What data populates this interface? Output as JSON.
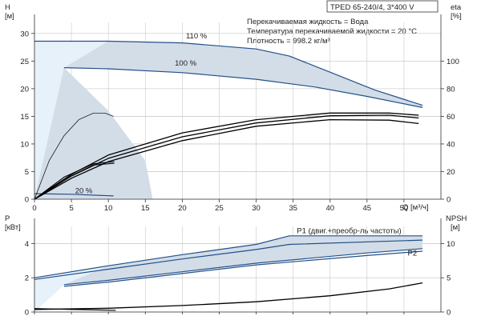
{
  "header": {
    "model": "TPED 65-240/4, 3*400 V"
  },
  "annotations": {
    "liquid": "Перекачиваемая жидкость = Вода",
    "temperature": "Температура перекачиваемой жидкости = 20 °C",
    "density": "Плотность = 998.2 кг/м³"
  },
  "colors": {
    "envelope": "#d3dde8",
    "envelope_light": "#e6f1fa",
    "speed_curve": "#23508a",
    "system_curve": "#000000"
  },
  "chart_data": [
    {
      "type": "line",
      "panel": "head-efficiency",
      "x_label": "Q [м³/ч]",
      "y_label": "H",
      "y_unit": "[м]",
      "y2_label": "eta",
      "y2_unit": "[%]",
      "x_ticks": [
        "0",
        "5",
        "10",
        "15",
        "20",
        "25",
        "30",
        "35",
        "40",
        "45",
        "50"
      ],
      "y_ticks": [
        "0",
        "5",
        "10",
        "15",
        "20",
        "25",
        "30"
      ],
      "y2_ticks": [
        "0",
        "20",
        "40",
        "60",
        "80",
        "100"
      ],
      "xlim": [
        0,
        55
      ],
      "ylim": [
        0,
        32
      ],
      "y2lim": [
        0,
        128
      ],
      "envelope": [
        [
          0,
          28.6
        ],
        [
          10,
          28.6
        ],
        [
          20,
          28.3
        ],
        [
          30,
          27.2
        ],
        [
          34.5,
          25.9
        ],
        [
          40,
          23
        ],
        [
          46,
          19.8
        ],
        [
          52.5,
          17
        ],
        [
          52.5,
          16.6
        ],
        [
          45,
          18.6
        ],
        [
          38,
          20.3
        ],
        [
          30,
          21.7
        ],
        [
          20,
          22.9
        ],
        [
          10,
          23.6
        ],
        [
          4,
          23.8
        ],
        [
          10,
          16
        ],
        [
          15,
          7
        ],
        [
          16,
          0
        ],
        [
          0,
          0
        ]
      ],
      "envelope_light": [
        [
          0,
          28.6
        ],
        [
          10,
          28.6
        ],
        [
          4,
          23.8
        ],
        [
          0,
          0
        ]
      ],
      "series": [
        {
          "name": "110 %",
          "role": "speed",
          "points": [
            [
              0,
              28.6
            ],
            [
              10,
              28.6
            ],
            [
              20,
              28.3
            ],
            [
              30,
              27.2
            ],
            [
              34.5,
              25.9
            ],
            [
              40,
              23
            ],
            [
              46,
              19.8
            ],
            [
              52.5,
              17
            ]
          ]
        },
        {
          "name": "100 %",
          "role": "speed",
          "points": [
            [
              4,
              23.8
            ],
            [
              10,
              23.6
            ],
            [
              20,
              22.9
            ],
            [
              30,
              21.7
            ],
            [
              38,
              20.3
            ],
            [
              45,
              18.6
            ],
            [
              52.5,
              16.6
            ]
          ]
        },
        {
          "name": "20 %",
          "role": "speed",
          "points": [
            [
              0,
              1
            ],
            [
              5,
              0.9
            ],
            [
              10.7,
              0.6
            ]
          ]
        },
        {
          "role": "system",
          "points": [
            [
              0,
              0
            ],
            [
              5,
              4.5
            ],
            [
              10,
              8
            ],
            [
              20,
              12
            ],
            [
              30,
              14.4
            ],
            [
              40,
              15.6
            ],
            [
              48,
              15.6
            ],
            [
              52,
              15.2
            ]
          ]
        },
        {
          "role": "system",
          "points": [
            [
              0,
              0
            ],
            [
              5,
              4.2
            ],
            [
              10,
              7.4
            ],
            [
              20,
              11.3
            ],
            [
              30,
              13.8
            ],
            [
              40,
              15.1
            ],
            [
              48,
              15.2
            ],
            [
              52,
              14.7
            ]
          ]
        },
        {
          "role": "system",
          "points": [
            [
              0,
              0
            ],
            [
              5,
              3.8
            ],
            [
              10,
              6.8
            ],
            [
              20,
              10.6
            ],
            [
              30,
              13.2
            ],
            [
              40,
              14.4
            ],
            [
              48,
              14.3
            ],
            [
              52,
              13.7
            ]
          ]
        },
        {
          "role": "system-low",
          "points": [
            [
              0,
              0
            ],
            [
              4,
              4
            ],
            [
              8,
              6.4
            ],
            [
              10.8,
              6.8
            ]
          ]
        },
        {
          "role": "system-low",
          "points": [
            [
              0,
              0
            ],
            [
              4,
              3.6
            ],
            [
              8,
              6.2
            ],
            [
              10.8,
              6.5
            ]
          ]
        },
        {
          "role": "eta",
          "points": [
            [
              0,
              0
            ],
            [
              2,
              7
            ],
            [
              4,
              11.5
            ],
            [
              6,
              14.4
            ],
            [
              8,
              15.6
            ],
            [
              9.5,
              15.6
            ],
            [
              10.7,
              15
            ]
          ]
        }
      ],
      "curve_labels": [
        {
          "text": "110 %",
          "x": 20.5,
          "y": 29.1
        },
        {
          "text": "100 %",
          "x": 19,
          "y": 24.2
        },
        {
          "text": "20 %",
          "x": 5.5,
          "y": 1.1
        }
      ]
    },
    {
      "type": "line",
      "panel": "power-npsh",
      "x_label": "",
      "y_label": "P",
      "y_unit": "[кВт]",
      "y2_label": "NPSH",
      "y2_unit": "[м]",
      "y_ticks": [
        "0",
        "2",
        "4"
      ],
      "y2_ticks": [
        "0",
        "5",
        "10"
      ],
      "xlim": [
        0,
        55
      ],
      "ylim": [
        0,
        5
      ],
      "y2lim": [
        0,
        12.5
      ],
      "envelope": [
        [
          0,
          2
        ],
        [
          10,
          2.7
        ],
        [
          20,
          3.35
        ],
        [
          30,
          3.95
        ],
        [
          34.5,
          4.45
        ],
        [
          52.5,
          4.45
        ],
        [
          52.5,
          3.7
        ],
        [
          45,
          3.45
        ],
        [
          30,
          2.85
        ],
        [
          20,
          2.35
        ],
        [
          10,
          1.85
        ],
        [
          4,
          1.6
        ],
        [
          0,
          0
        ]
      ],
      "envelope_light": [
        [
          0,
          2
        ],
        [
          10,
          2.7
        ],
        [
          4,
          1.6
        ],
        [
          0,
          0
        ]
      ],
      "series": [
        {
          "name": "P1 (двиг.+преобр-ль частоты)",
          "role": "speed",
          "points": [
            [
              0,
              2
            ],
            [
              10,
              2.7
            ],
            [
              20,
              3.35
            ],
            [
              30,
              3.95
            ],
            [
              34.5,
              4.45
            ],
            [
              52.5,
              4.45
            ]
          ]
        },
        {
          "role": "speed",
          "points": [
            [
              0,
              1.9
            ],
            [
              10,
              2.5
            ],
            [
              20,
              3.1
            ],
            [
              30,
              3.65
            ],
            [
              34.5,
              3.95
            ],
            [
              52.5,
              4.2
            ]
          ]
        },
        {
          "name": "P2",
          "role": "speed",
          "points": [
            [
              4,
              1.6
            ],
            [
              10,
              1.85
            ],
            [
              20,
              2.35
            ],
            [
              30,
              2.85
            ],
            [
              45,
              3.45
            ],
            [
              52.5,
              3.7
            ]
          ]
        },
        {
          "role": "speed",
          "points": [
            [
              4,
              1.5
            ],
            [
              10,
              1.75
            ],
            [
              20,
              2.25
            ],
            [
              30,
              2.75
            ],
            [
              45,
              3.3
            ],
            [
              52.5,
              3.55
            ]
          ]
        },
        {
          "role": "system",
          "points": [
            [
              0,
              0.15
            ],
            [
              10,
              0.22
            ],
            [
              20,
              0.38
            ],
            [
              30,
              0.6
            ],
            [
              40,
              0.95
            ],
            [
              48,
              1.35
            ],
            [
              52.5,
              1.7
            ]
          ]
        },
        {
          "role": "system-low",
          "points": [
            [
              0,
              0.2
            ],
            [
              5,
              0.15
            ],
            [
              11,
              0.1
            ]
          ]
        }
      ],
      "curve_labels": [
        {
          "text": "P1 (двиг.+преобр-ль частоты)",
          "x": 35.5,
          "y": 4.6
        },
        {
          "text": "P2",
          "x": 50.5,
          "y": 3.3
        }
      ]
    }
  ]
}
